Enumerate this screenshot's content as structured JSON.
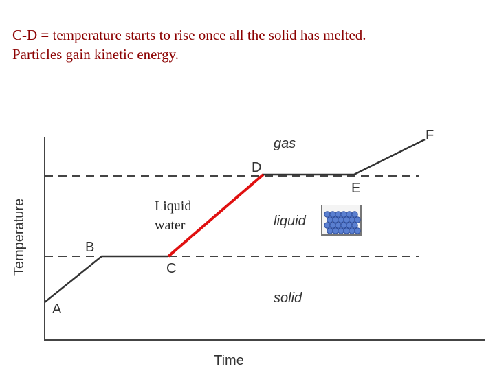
{
  "caption": {
    "lines": [
      "C-D = temperature starts to rise once all the solid has melted.",
      "Particles gain kinetic energy."
    ]
  },
  "axes": {
    "y_label": "Temperature",
    "x_label": "Time"
  },
  "points": [
    "A",
    "B",
    "C",
    "D",
    "E",
    "F"
  ],
  "regions": [
    "gas",
    "liquid",
    "solid"
  ],
  "annotation": {
    "lines": [
      "Liquid",
      "water"
    ]
  }
}
